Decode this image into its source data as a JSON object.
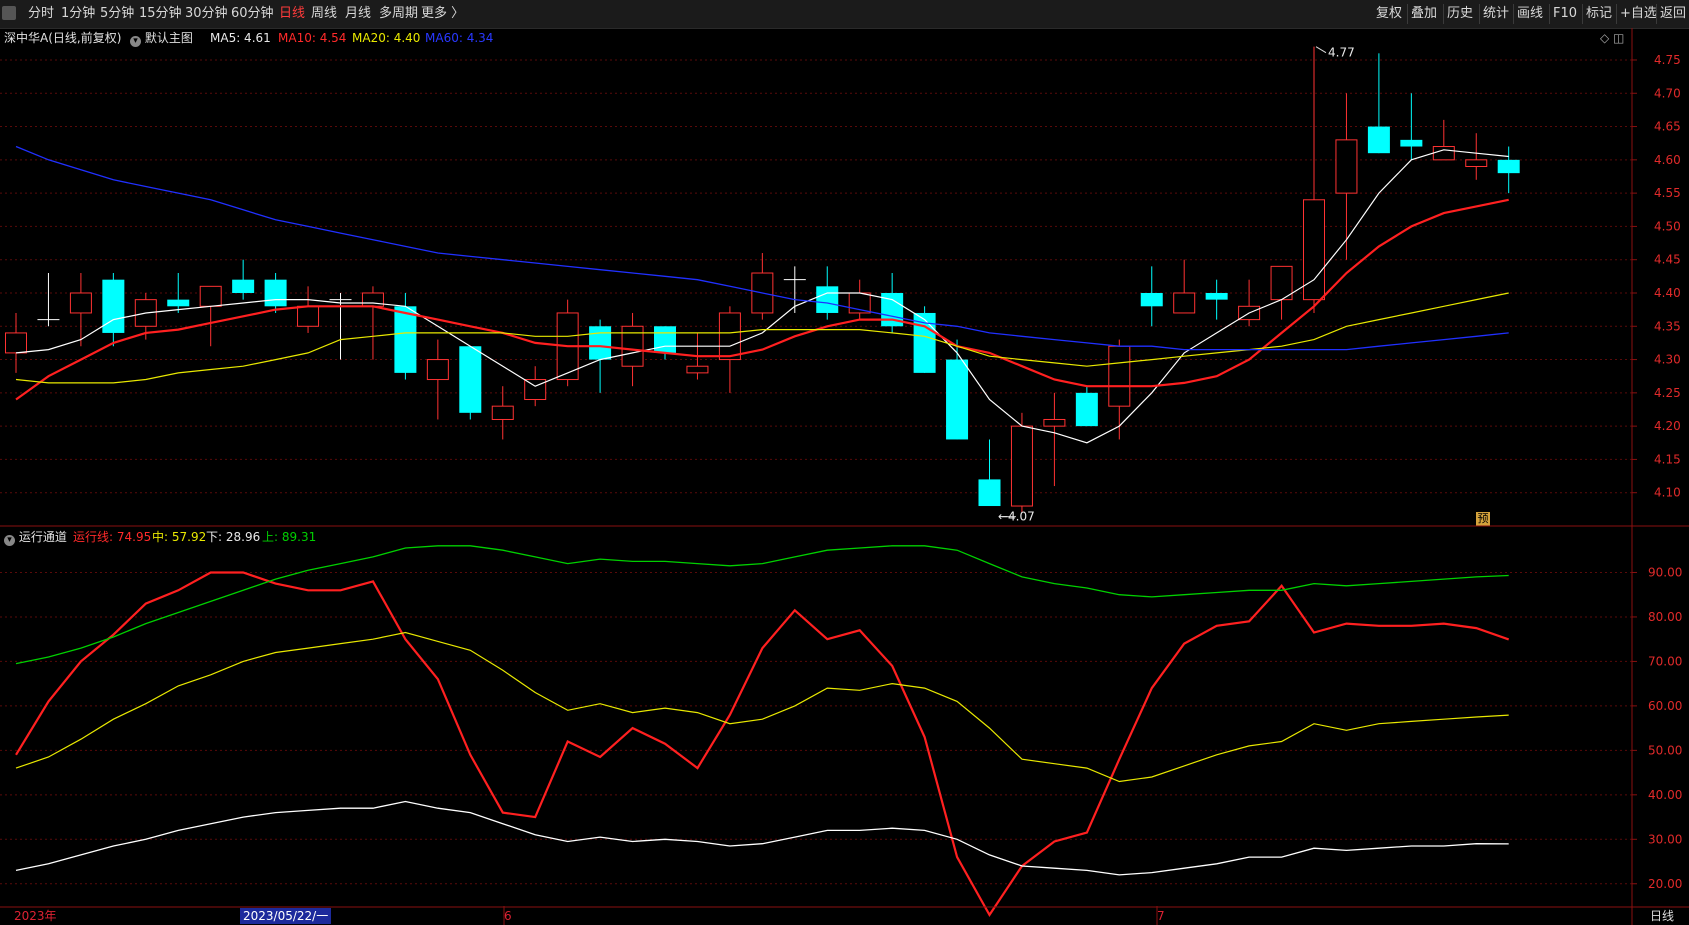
{
  "toolbar": {
    "left_items": [
      "分时",
      "1分钟",
      "5分钟",
      "15分钟",
      "30分钟",
      "60分钟",
      "日线",
      "周线",
      "月线",
      "多周期",
      "更多 〉"
    ],
    "active_item": "日线",
    "right_items": [
      "复权",
      "叠加",
      "历史",
      "统计",
      "画线",
      "F10",
      "标记",
      "+自选",
      "返回"
    ]
  },
  "main_legend": {
    "stock": "深中华A(日线,前复权)",
    "chart_name": "默认主图",
    "ma5": "MA5: 4.61",
    "ma10": "MA10: 4.54",
    "ma20": "MA20: 4.40",
    "ma60": "MA60: 4.34"
  },
  "sub_legend": {
    "name": "运行通道",
    "line": "运行线: 74.95",
    "mid": "中: 57.92",
    "low": "下: 28.96",
    "up": "上: 89.31"
  },
  "annotations": {
    "high": "4.77",
    "low": "4.07",
    "forecast_tag": "预"
  },
  "bottom": {
    "year": "2023年",
    "cursor_date": "2023/05/22/一",
    "month_6": "6",
    "month_7": "7",
    "period": "日线"
  },
  "colors": {
    "up": "#ff3232",
    "down": "#00ffff",
    "ma5": "#ffffff",
    "ma10": "#ff2020",
    "ma20": "#e8e800",
    "ma60": "#2030ff",
    "green": "#00d000"
  },
  "chart_data": [
    {
      "type": "candlestick",
      "title": "深中华A(日线,前复权)",
      "ylim": [
        4.05,
        4.78
      ],
      "y_ticks": [
        "4.75",
        "4.70",
        "4.65",
        "4.60",
        "4.55",
        "4.50",
        "4.45",
        "4.40",
        "4.35",
        "4.30",
        "4.25",
        "4.20",
        "4.15",
        "4.10"
      ],
      "candles": [
        {
          "o": 4.31,
          "c": 4.34,
          "h": 4.37,
          "l": 4.28
        },
        {
          "o": 4.36,
          "c": 4.36,
          "h": 4.43,
          "l": 4.35
        },
        {
          "o": 4.37,
          "c": 4.4,
          "h": 4.43,
          "l": 4.32
        },
        {
          "o": 4.42,
          "c": 4.34,
          "h": 4.43,
          "l": 4.32
        },
        {
          "o": 4.35,
          "c": 4.39,
          "h": 4.4,
          "l": 4.33
        },
        {
          "o": 4.39,
          "c": 4.38,
          "h": 4.43,
          "l": 4.37
        },
        {
          "o": 4.38,
          "c": 4.41,
          "h": 4.41,
          "l": 4.32
        },
        {
          "o": 4.42,
          "c": 4.4,
          "h": 4.45,
          "l": 4.39
        },
        {
          "o": 4.42,
          "c": 4.38,
          "h": 4.43,
          "l": 4.37
        },
        {
          "o": 4.35,
          "c": 4.38,
          "h": 4.41,
          "l": 4.34
        },
        {
          "o": 4.39,
          "c": 4.39,
          "h": 4.4,
          "l": 4.3
        },
        {
          "o": 4.38,
          "c": 4.4,
          "h": 4.41,
          "l": 4.3
        },
        {
          "o": 4.38,
          "c": 4.28,
          "h": 4.4,
          "l": 4.27
        },
        {
          "o": 4.27,
          "c": 4.3,
          "h": 4.33,
          "l": 4.21
        },
        {
          "o": 4.32,
          "c": 4.22,
          "h": 4.32,
          "l": 4.21
        },
        {
          "o": 4.21,
          "c": 4.23,
          "h": 4.26,
          "l": 4.18
        },
        {
          "o": 4.24,
          "c": 4.27,
          "h": 4.29,
          "l": 4.23
        },
        {
          "o": 4.27,
          "c": 4.37,
          "h": 4.39,
          "l": 4.26
        },
        {
          "o": 4.35,
          "c": 4.3,
          "h": 4.36,
          "l": 4.25
        },
        {
          "o": 4.29,
          "c": 4.35,
          "h": 4.37,
          "l": 4.26
        },
        {
          "o": 4.35,
          "c": 4.31,
          "h": 4.35,
          "l": 4.3
        },
        {
          "o": 4.28,
          "c": 4.29,
          "h": 4.34,
          "l": 4.27
        },
        {
          "o": 4.3,
          "c": 4.37,
          "h": 4.38,
          "l": 4.25
        },
        {
          "o": 4.37,
          "c": 4.43,
          "h": 4.46,
          "l": 4.36
        },
        {
          "o": 4.42,
          "c": 4.42,
          "h": 4.44,
          "l": 4.37
        },
        {
          "o": 4.41,
          "c": 4.37,
          "h": 4.44,
          "l": 4.36
        },
        {
          "o": 4.37,
          "c": 4.4,
          "h": 4.42,
          "l": 4.36
        },
        {
          "o": 4.4,
          "c": 4.35,
          "h": 4.43,
          "l": 4.34
        },
        {
          "o": 4.37,
          "c": 4.28,
          "h": 4.38,
          "l": 4.28
        },
        {
          "o": 4.3,
          "c": 4.18,
          "h": 4.33,
          "l": 4.18
        },
        {
          "o": 4.12,
          "c": 4.08,
          "h": 4.18,
          "l": 4.08
        },
        {
          "o": 4.08,
          "c": 4.2,
          "h": 4.22,
          "l": 4.07
        },
        {
          "o": 4.2,
          "c": 4.21,
          "h": 4.25,
          "l": 4.11
        },
        {
          "o": 4.25,
          "c": 4.2,
          "h": 4.26,
          "l": 4.2
        },
        {
          "o": 4.23,
          "c": 4.32,
          "h": 4.33,
          "l": 4.18
        },
        {
          "o": 4.4,
          "c": 4.38,
          "h": 4.44,
          "l": 4.35
        },
        {
          "o": 4.37,
          "c": 4.4,
          "h": 4.45,
          "l": 4.37
        },
        {
          "o": 4.4,
          "c": 4.39,
          "h": 4.42,
          "l": 4.36
        },
        {
          "o": 4.36,
          "c": 4.38,
          "h": 4.42,
          "l": 4.35
        },
        {
          "o": 4.39,
          "c": 4.44,
          "h": 4.44,
          "l": 4.36
        },
        {
          "o": 4.39,
          "c": 4.54,
          "h": 4.77,
          "l": 4.37
        },
        {
          "o": 4.55,
          "c": 4.63,
          "h": 4.7,
          "l": 4.45
        },
        {
          "o": 4.65,
          "c": 4.61,
          "h": 4.76,
          "l": 4.61
        },
        {
          "o": 4.63,
          "c": 4.62,
          "h": 4.7,
          "l": 4.6
        },
        {
          "o": 4.6,
          "c": 4.62,
          "h": 4.66,
          "l": 4.6
        },
        {
          "o": 4.59,
          "c": 4.6,
          "h": 4.64,
          "l": 4.57
        },
        {
          "o": 4.6,
          "c": 4.58,
          "h": 4.62,
          "l": 4.55
        }
      ],
      "series": [
        {
          "name": "MA5",
          "values": [
            4.31,
            4.315,
            4.33,
            4.36,
            4.37,
            4.375,
            4.38,
            4.385,
            4.39,
            4.39,
            4.385,
            4.385,
            4.38,
            4.35,
            4.32,
            4.29,
            4.26,
            4.28,
            4.3,
            4.31,
            4.32,
            4.32,
            4.32,
            4.34,
            4.38,
            4.4,
            4.4,
            4.39,
            4.36,
            4.31,
            4.24,
            4.2,
            4.19,
            4.175,
            4.2,
            4.25,
            4.31,
            4.34,
            4.37,
            4.39,
            4.42,
            4.48,
            4.55,
            4.6,
            4.615,
            4.61,
            4.605
          ]
        },
        {
          "name": "MA10",
          "values": [
            4.24,
            4.275,
            4.3,
            4.325,
            4.34,
            4.345,
            4.355,
            4.365,
            4.375,
            4.38,
            4.38,
            4.38,
            4.37,
            4.36,
            4.35,
            4.34,
            4.325,
            4.32,
            4.32,
            4.315,
            4.31,
            4.305,
            4.305,
            4.315,
            4.335,
            4.35,
            4.36,
            4.36,
            4.35,
            4.32,
            4.31,
            4.29,
            4.27,
            4.26,
            4.26,
            4.26,
            4.265,
            4.275,
            4.3,
            4.34,
            4.38,
            4.43,
            4.47,
            4.5,
            4.52,
            4.53,
            4.54
          ]
        },
        {
          "name": "MA20",
          "values": [
            4.27,
            4.265,
            4.265,
            4.265,
            4.27,
            4.28,
            4.285,
            4.29,
            4.3,
            4.31,
            4.33,
            4.335,
            4.34,
            4.34,
            4.34,
            4.34,
            4.335,
            4.335,
            4.34,
            4.34,
            4.34,
            4.34,
            4.34,
            4.345,
            4.345,
            4.345,
            4.345,
            4.34,
            4.335,
            4.32,
            4.305,
            4.3,
            4.295,
            4.29,
            4.295,
            4.3,
            4.305,
            4.31,
            4.315,
            4.32,
            4.33,
            4.35,
            4.36,
            4.37,
            4.38,
            4.39,
            4.4
          ]
        },
        {
          "name": "MA60",
          "values": [
            4.62,
            4.6,
            4.585,
            4.57,
            4.56,
            4.55,
            4.54,
            4.525,
            4.51,
            4.5,
            4.49,
            4.48,
            4.47,
            4.46,
            4.455,
            4.45,
            4.445,
            4.44,
            4.435,
            4.43,
            4.425,
            4.42,
            4.41,
            4.4,
            4.39,
            4.385,
            4.375,
            4.365,
            4.355,
            4.35,
            4.34,
            4.335,
            4.33,
            4.325,
            4.32,
            4.32,
            4.315,
            4.315,
            4.315,
            4.315,
            4.315,
            4.315,
            4.32,
            4.325,
            4.33,
            4.335,
            4.34
          ]
        }
      ]
    },
    {
      "type": "line",
      "title": "运行通道",
      "ylim": [
        15,
        100
      ],
      "y_ticks": [
        "90.00",
        "80.00",
        "70.00",
        "60.00",
        "50.00",
        "40.00",
        "30.00",
        "20.00"
      ],
      "series": [
        {
          "name": "运行线",
          "values": [
            49,
            61,
            70,
            76,
            83,
            86,
            90,
            90,
            87.5,
            86,
            86,
            88,
            75,
            66,
            49,
            36,
            35,
            52,
            48.5,
            55,
            51.5,
            46,
            58,
            73,
            81.5,
            75,
            77,
            69,
            53,
            26,
            13,
            24,
            29.5,
            31.5,
            48,
            64,
            74,
            78,
            79,
            87,
            76.5,
            78.5,
            78,
            78,
            78.5,
            77.5,
            74.95
          ]
        },
        {
          "name": "中",
          "values": [
            46,
            48.5,
            52.5,
            57,
            60.5,
            64.5,
            67,
            70,
            72,
            73,
            74,
            75,
            76.5,
            74.5,
            72.5,
            68,
            63,
            59,
            60.5,
            58.5,
            59.5,
            58.5,
            56,
            57,
            60,
            64,
            63.5,
            65,
            64,
            61,
            55,
            48,
            47,
            46,
            43,
            44,
            46.5,
            49,
            51,
            52,
            56,
            54.5,
            56,
            56.5,
            57,
            57.5,
            57.92
          ]
        },
        {
          "name": "下",
          "values": [
            23,
            24.5,
            26.5,
            28.5,
            30,
            32,
            33.5,
            35,
            36,
            36.5,
            37,
            37,
            38.5,
            37,
            36,
            33.5,
            31,
            29.5,
            30.5,
            29.5,
            30,
            29.5,
            28.5,
            29,
            30.5,
            32,
            32,
            32.5,
            32,
            30,
            26.5,
            24,
            23.5,
            23,
            22,
            22.5,
            23.5,
            24.5,
            26,
            26,
            28,
            27.5,
            28,
            28.5,
            28.5,
            29,
            28.96
          ]
        },
        {
          "name": "上",
          "values": [
            69.5,
            71,
            73,
            75.5,
            78.5,
            81,
            83.5,
            86,
            88.5,
            90.5,
            92,
            93.5,
            95.5,
            96,
            96,
            95,
            93.5,
            92,
            93,
            92.5,
            92.5,
            92,
            91.5,
            92,
            93.5,
            95,
            95.5,
            96,
            96,
            95,
            92,
            89,
            87.5,
            86.5,
            85,
            84.5,
            85,
            85.5,
            86,
            86,
            87.5,
            87,
            87.5,
            88,
            88.5,
            89,
            89.31
          ]
        }
      ]
    }
  ]
}
